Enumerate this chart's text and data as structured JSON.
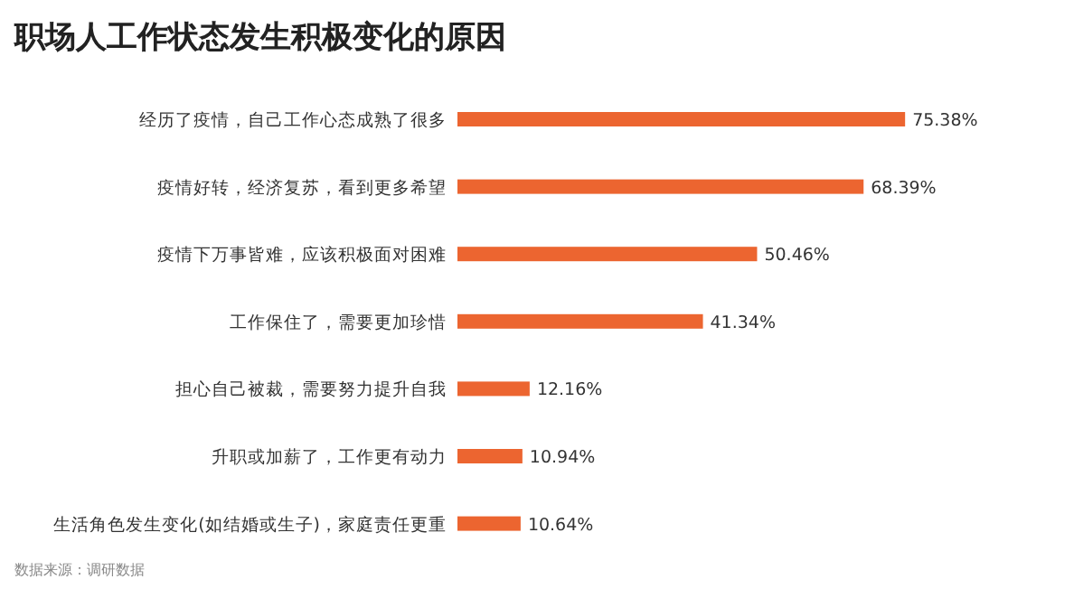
{
  "chart_data": {
    "type": "bar",
    "orientation": "horizontal",
    "title": "职场人工作状态发生积极变化的原因",
    "categories": [
      "经历了疫情，自己工作心态成熟了很多",
      "疫情好转，经济复苏，看到更多希望",
      "疫情下万事皆难，应该积极面对困难",
      "工作保住了，需要更加珍惜",
      "担心自己被裁，需要努力提升自我",
      "升职或加薪了，工作更有动力",
      "生活角色发生变化(如结婚或生子)，家庭责任更重"
    ],
    "values": [
      75.38,
      68.39,
      50.46,
      41.34,
      12.16,
      10.94,
      10.64
    ],
    "value_labels": [
      "75.38%",
      "68.39%",
      "50.46%",
      "41.34%",
      "12.16%",
      "10.94%",
      "10.64%"
    ],
    "color": "#ec6530",
    "annotations": [
      "数据来源：调研数据"
    ]
  }
}
